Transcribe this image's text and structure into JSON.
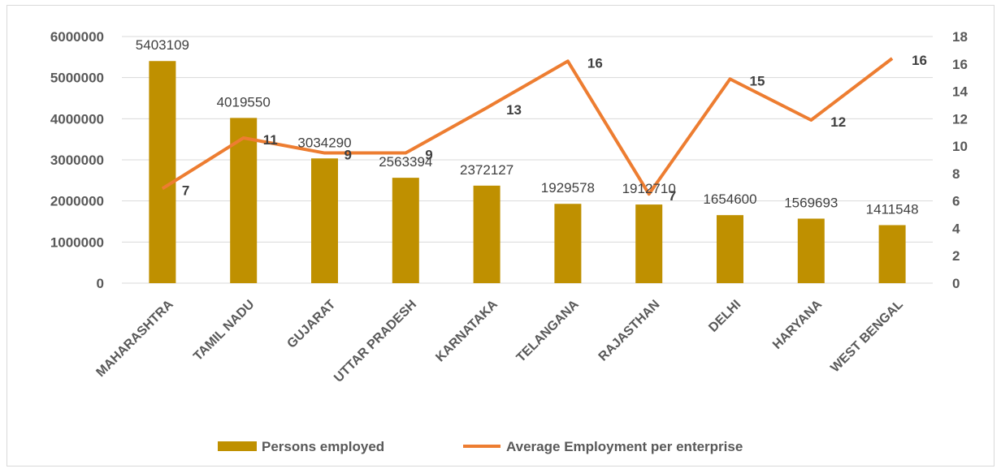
{
  "chart_data": {
    "type": "bar",
    "title": "",
    "categories": [
      "MAHARASHTRA",
      "TAMIL NADU",
      "GUJARAT",
      "UTTAR PRADESH",
      "KARNATAKA",
      "TELANGANA",
      "RAJASTHAN",
      "DELHI",
      "HARYANA",
      "WEST BENGAL"
    ],
    "series": [
      {
        "name": "Persons employed",
        "type": "bar",
        "axis": "left",
        "color": "#bf9000",
        "values": [
          5403109,
          4019550,
          3034290,
          2563394,
          2372127,
          1929578,
          1912710,
          1654600,
          1569693,
          1411548
        ],
        "labels": [
          "5403109",
          "4019550",
          "3034290",
          "2563394",
          "2372127",
          "1929578",
          "1912710",
          "1654600",
          "1569693",
          "1411548"
        ]
      },
      {
        "name": "Average Employment per enterprise",
        "type": "line",
        "axis": "right",
        "color": "#ed7d31",
        "values": [
          6.9,
          10.6,
          9.5,
          9.5,
          12.8,
          16.2,
          6.5,
          14.9,
          11.9,
          16.4
        ],
        "labels": [
          "7",
          "11",
          "9",
          "9",
          "13",
          "16",
          "7",
          "15",
          "12",
          "16"
        ]
      }
    ],
    "y_left": {
      "min": 0,
      "max": 6000000,
      "ticks": [
        "0",
        "1000000",
        "2000000",
        "3000000",
        "4000000",
        "5000000",
        "6000000"
      ]
    },
    "y_right": {
      "min": 0,
      "max": 18,
      "ticks": [
        "0",
        "2",
        "4",
        "6",
        "8",
        "10",
        "12",
        "14",
        "16",
        "18"
      ]
    },
    "grid": true,
    "legend": "bottom"
  }
}
